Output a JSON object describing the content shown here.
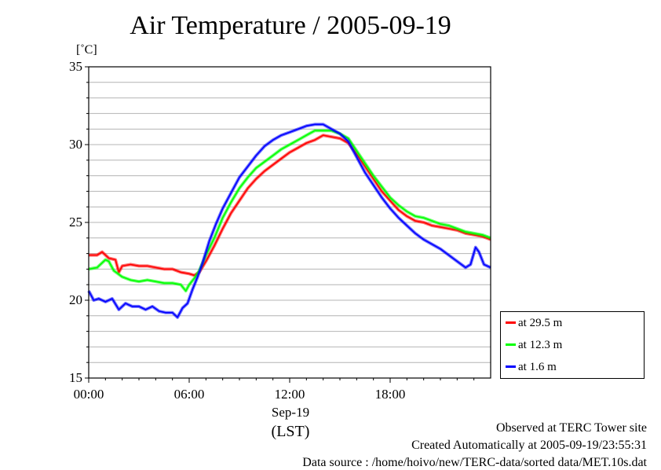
{
  "chart_data": {
    "type": "line",
    "title": "Air Temperature / 2005-09-19",
    "ylabel": "[˚C]",
    "xlabel": "(LST)",
    "date_label": "Sep-19",
    "ylim": [
      15,
      35
    ],
    "yticks": [
      15,
      20,
      25,
      30,
      35
    ],
    "xlim": [
      0,
      24
    ],
    "xticks": [
      {
        "h": 0,
        "label": "00:00"
      },
      {
        "h": 6,
        "label": "06:00"
      },
      {
        "h": 12,
        "label": "12:00"
      },
      {
        "h": 18,
        "label": "18:00"
      }
    ],
    "grid": true,
    "legend_position": "bottom-right outside",
    "series": [
      {
        "name": "at 29.5 m",
        "color": "#ff0000",
        "points": [
          [
            0,
            22.9
          ],
          [
            0.5,
            22.9
          ],
          [
            0.8,
            23.1
          ],
          [
            1.2,
            22.7
          ],
          [
            1.6,
            22.6
          ],
          [
            1.8,
            21.8
          ],
          [
            2,
            22.2
          ],
          [
            2.5,
            22.3
          ],
          [
            3,
            22.2
          ],
          [
            3.5,
            22.2
          ],
          [
            4,
            22.1
          ],
          [
            4.5,
            22.0
          ],
          [
            5,
            22.0
          ],
          [
            5.5,
            21.8
          ],
          [
            6,
            21.7
          ],
          [
            6.3,
            21.6
          ],
          [
            6.6,
            21.8
          ],
          [
            7,
            22.5
          ],
          [
            7.5,
            23.5
          ],
          [
            8,
            24.6
          ],
          [
            8.5,
            25.6
          ],
          [
            9,
            26.4
          ],
          [
            9.5,
            27.2
          ],
          [
            10,
            27.8
          ],
          [
            10.5,
            28.3
          ],
          [
            11,
            28.7
          ],
          [
            11.5,
            29.1
          ],
          [
            12,
            29.5
          ],
          [
            12.5,
            29.8
          ],
          [
            13,
            30.1
          ],
          [
            13.5,
            30.3
          ],
          [
            14,
            30.6
          ],
          [
            14.5,
            30.5
          ],
          [
            15,
            30.4
          ],
          [
            15.5,
            30.1
          ],
          [
            16,
            29.4
          ],
          [
            16.5,
            28.6
          ],
          [
            17,
            27.8
          ],
          [
            17.5,
            27.0
          ],
          [
            18,
            26.4
          ],
          [
            18.5,
            25.8
          ],
          [
            19,
            25.4
          ],
          [
            19.5,
            25.1
          ],
          [
            20,
            25.0
          ],
          [
            20.5,
            24.8
          ],
          [
            21,
            24.7
          ],
          [
            21.5,
            24.6
          ],
          [
            22,
            24.5
          ],
          [
            22.5,
            24.3
          ],
          [
            23,
            24.2
          ],
          [
            23.5,
            24.1
          ],
          [
            24,
            23.9
          ]
        ]
      },
      {
        "name": "at 12.3 m",
        "color": "#00ff00",
        "points": [
          [
            0,
            22.0
          ],
          [
            0.5,
            22.1
          ],
          [
            1,
            22.6
          ],
          [
            1.2,
            22.5
          ],
          [
            1.5,
            21.9
          ],
          [
            2,
            21.5
          ],
          [
            2.5,
            21.3
          ],
          [
            3,
            21.2
          ],
          [
            3.5,
            21.3
          ],
          [
            4,
            21.2
          ],
          [
            4.5,
            21.1
          ],
          [
            5,
            21.1
          ],
          [
            5.5,
            21.0
          ],
          [
            5.8,
            20.6
          ],
          [
            6,
            21.0
          ],
          [
            6.3,
            21.4
          ],
          [
            6.6,
            21.9
          ],
          [
            7,
            22.9
          ],
          [
            7.5,
            24.0
          ],
          [
            8,
            25.3
          ],
          [
            8.5,
            26.3
          ],
          [
            9,
            27.2
          ],
          [
            9.5,
            27.9
          ],
          [
            10,
            28.5
          ],
          [
            10.5,
            28.9
          ],
          [
            11,
            29.3
          ],
          [
            11.5,
            29.7
          ],
          [
            12,
            30.0
          ],
          [
            12.5,
            30.3
          ],
          [
            13,
            30.6
          ],
          [
            13.5,
            30.9
          ],
          [
            14,
            30.9
          ],
          [
            14.5,
            30.9
          ],
          [
            15,
            30.7
          ],
          [
            15.5,
            30.4
          ],
          [
            16,
            29.6
          ],
          [
            16.5,
            28.8
          ],
          [
            17,
            28.0
          ],
          [
            17.5,
            27.3
          ],
          [
            18,
            26.6
          ],
          [
            18.5,
            26.1
          ],
          [
            19,
            25.7
          ],
          [
            19.5,
            25.4
          ],
          [
            20,
            25.3
          ],
          [
            20.5,
            25.1
          ],
          [
            21,
            24.9
          ],
          [
            21.5,
            24.8
          ],
          [
            22,
            24.6
          ],
          [
            22.5,
            24.4
          ],
          [
            23,
            24.3
          ],
          [
            23.5,
            24.2
          ],
          [
            24,
            24.0
          ]
        ]
      },
      {
        "name": "at 1.6 m",
        "color": "#0000ff",
        "points": [
          [
            0,
            20.6
          ],
          [
            0.3,
            20.0
          ],
          [
            0.6,
            20.1
          ],
          [
            1,
            19.9
          ],
          [
            1.4,
            20.1
          ],
          [
            1.8,
            19.4
          ],
          [
            2.2,
            19.8
          ],
          [
            2.6,
            19.6
          ],
          [
            3,
            19.6
          ],
          [
            3.4,
            19.4
          ],
          [
            3.8,
            19.6
          ],
          [
            4.2,
            19.3
          ],
          [
            4.6,
            19.2
          ],
          [
            5,
            19.2
          ],
          [
            5.3,
            18.9
          ],
          [
            5.6,
            19.5
          ],
          [
            5.9,
            19.8
          ],
          [
            6.2,
            20.7
          ],
          [
            6.5,
            21.5
          ],
          [
            6.8,
            22.4
          ],
          [
            7.2,
            23.8
          ],
          [
            7.6,
            24.9
          ],
          [
            8,
            25.9
          ],
          [
            8.5,
            26.9
          ],
          [
            9,
            27.9
          ],
          [
            9.5,
            28.6
          ],
          [
            10,
            29.3
          ],
          [
            10.5,
            29.9
          ],
          [
            11,
            30.3
          ],
          [
            11.5,
            30.6
          ],
          [
            12,
            30.8
          ],
          [
            12.5,
            31.0
          ],
          [
            13,
            31.2
          ],
          [
            13.5,
            31.3
          ],
          [
            14,
            31.3
          ],
          [
            14.5,
            31.0
          ],
          [
            15,
            30.7
          ],
          [
            15.5,
            30.2
          ],
          [
            16,
            29.2
          ],
          [
            16.5,
            28.2
          ],
          [
            17,
            27.4
          ],
          [
            17.5,
            26.6
          ],
          [
            18,
            25.9
          ],
          [
            18.5,
            25.3
          ],
          [
            19,
            24.8
          ],
          [
            19.5,
            24.3
          ],
          [
            20,
            23.9
          ],
          [
            20.5,
            23.6
          ],
          [
            21,
            23.3
          ],
          [
            21.5,
            22.9
          ],
          [
            22,
            22.5
          ],
          [
            22.5,
            22.1
          ],
          [
            22.8,
            22.3
          ],
          [
            23.1,
            23.4
          ],
          [
            23.3,
            23.1
          ],
          [
            23.6,
            22.3
          ],
          [
            24,
            22.1
          ]
        ]
      }
    ]
  },
  "footer": {
    "observed": "Observed at TERC Tower site",
    "created": "Created Automatically at 2005-09-19/23:55:31",
    "source": "Data source : /home/hoivo/new/TERC-data/sorted  data/MET.10s.dat"
  }
}
